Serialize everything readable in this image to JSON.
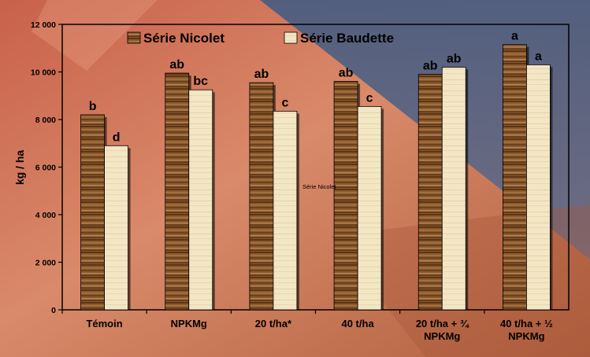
{
  "chart_data": {
    "type": "bar",
    "categories": [
      [
        "Témoin"
      ],
      [
        "NPKMg"
      ],
      [
        "20 t/ha*"
      ],
      [
        "40 t/ha"
      ],
      [
        "20 t/ha + ¾",
        "NPKMg"
      ],
      [
        "40 t/ha + ½",
        "NPKMg"
      ]
    ],
    "series": [
      {
        "name": "Série Nicolet",
        "values": [
          8200,
          9950,
          9550,
          9600,
          9900,
          11150
        ],
        "labels": [
          "b",
          "ab",
          "ab",
          "ab",
          "ab",
          "a"
        ]
      },
      {
        "name": "Série Baudette",
        "values": [
          6900,
          9250,
          8350,
          8550,
          10200,
          10300
        ],
        "labels": [
          "d",
          "bc",
          "c",
          "c",
          "ab",
          "a"
        ]
      }
    ],
    "ylabel": "kg / ha",
    "ylim": [
      0,
      12000
    ],
    "ytick_labels": [
      "0",
      "2 000",
      "4 000",
      "6 000",
      "8 000",
      "10 000",
      "12 000"
    ],
    "annotation": "Série Nicolet",
    "legend_position": "top-left",
    "grid": false,
    "colors": {
      "nicolet": "#8a5a2e",
      "nicolet_dark": "#5b3514",
      "baudette": "#f3e6c4",
      "frame": "#000000"
    }
  }
}
